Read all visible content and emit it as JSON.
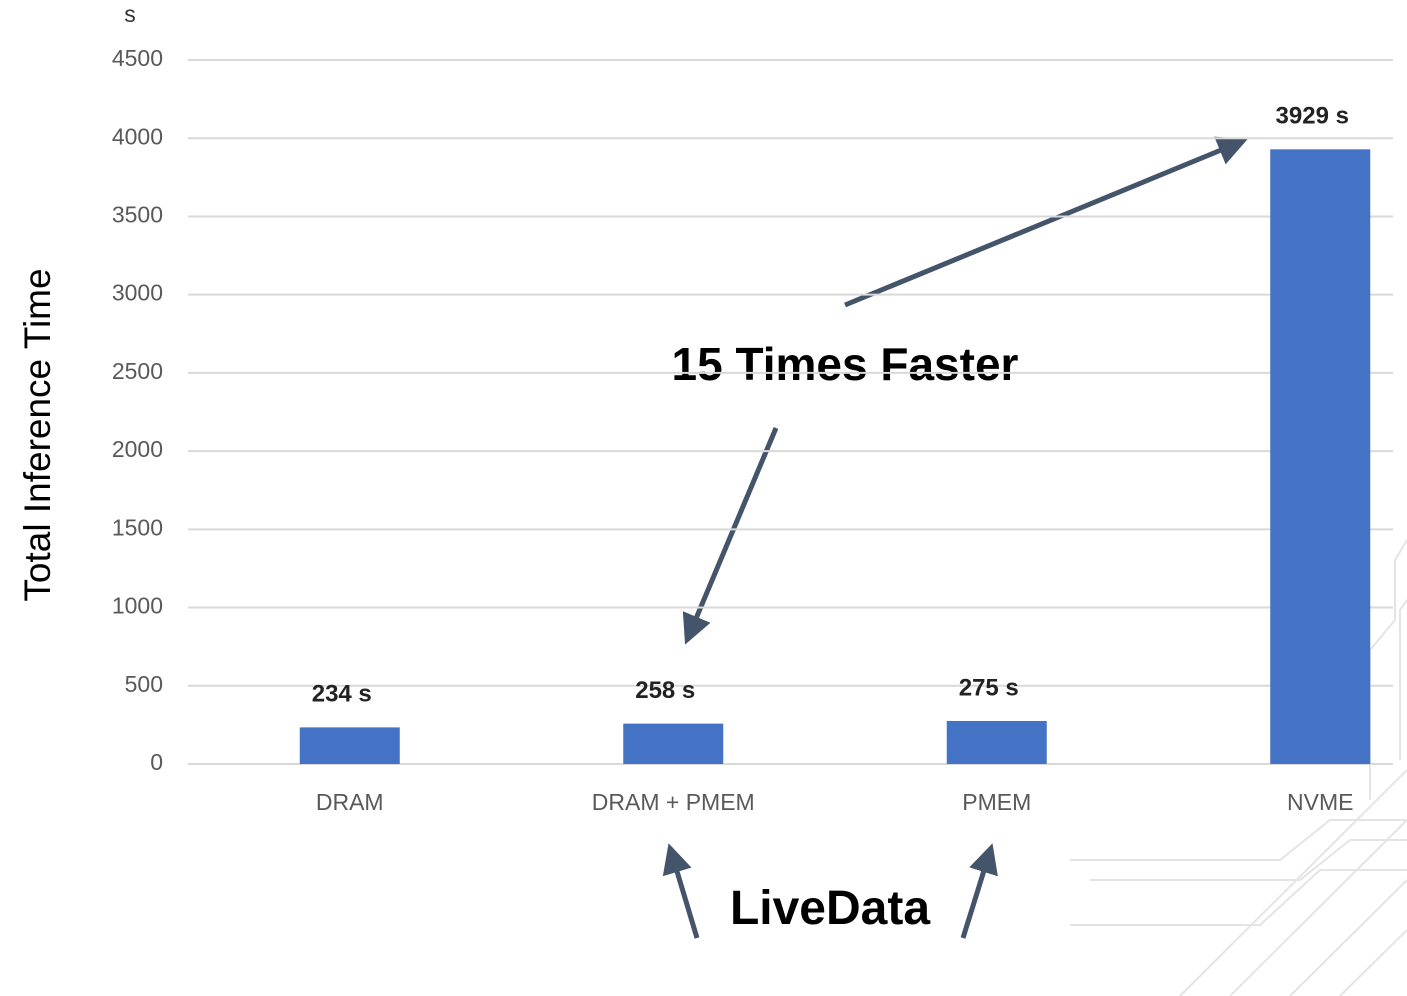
{
  "chart_data": {
    "type": "bar",
    "ylabel": "Total Inference Time",
    "yunit": "s",
    "categories": [
      "DRAM",
      "DRAM + PMEM",
      "PMEM",
      "NVME"
    ],
    "values": [
      234,
      258,
      275,
      3929
    ],
    "value_labels": [
      "234 s",
      "258 s",
      "275 s",
      "3929 s"
    ],
    "color": "#4472c4",
    "ylim": [
      0,
      4500
    ],
    "yticks": [
      0,
      500,
      1000,
      1500,
      2000,
      2500,
      3000,
      3500,
      4000,
      4500
    ],
    "grid": true,
    "annotations": [
      "15 Times Faster",
      "LiveData"
    ]
  }
}
